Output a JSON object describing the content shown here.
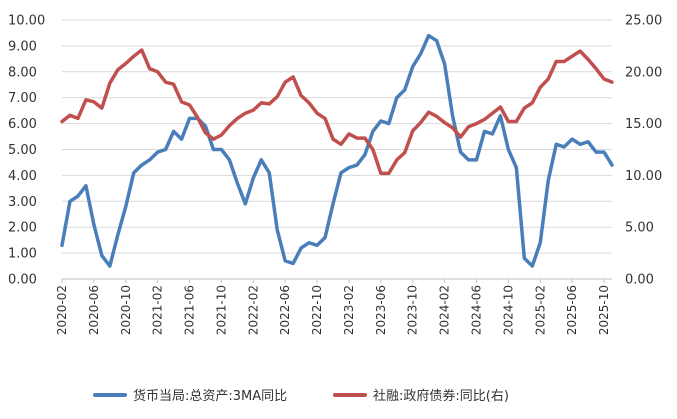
{
  "chart_data": {
    "type": "line",
    "title": "",
    "xlabel": "",
    "ylabel": "",
    "y_left_lim": [
      0,
      10
    ],
    "y_left_ticks": [
      "0.00",
      "1.00",
      "2.00",
      "3.00",
      "4.00",
      "5.00",
      "6.00",
      "7.00",
      "8.00",
      "9.00",
      "10.00"
    ],
    "y_right_lim": [
      0,
      25
    ],
    "y_right_ticks": [
      "0.00",
      "5.00",
      "10.00",
      "15.00",
      "20.00",
      "25.00"
    ],
    "x_tick_labels": [
      "2020-02",
      "2020-06",
      "2020-10",
      "2021-02",
      "2021-06",
      "2021-10",
      "2022-02",
      "2022-06",
      "2022-10",
      "2023-02",
      "2023-06",
      "2023-10",
      "2024-02",
      "2024-06",
      "2024-10",
      "2025-02",
      "2025-06",
      "2025-10"
    ],
    "x_start": "2020-02",
    "x_end": "2025-11",
    "legend_position": "bottom",
    "series": [
      {
        "name": "货币当局:总资产:3MA同比",
        "axis": "left",
        "color": "#4a7ebb",
        "values": [
          1.3,
          3.0,
          3.2,
          3.6,
          2.1,
          0.9,
          0.5,
          1.7,
          2.8,
          4.1,
          4.4,
          4.6,
          4.9,
          5.0,
          5.7,
          5.4,
          6.2,
          6.2,
          5.9,
          5.0,
          5.0,
          4.6,
          3.7,
          2.9,
          3.9,
          4.6,
          4.1,
          1.9,
          0.7,
          0.6,
          1.2,
          1.4,
          1.3,
          1.6,
          2.9,
          4.1,
          4.3,
          4.4,
          4.8,
          5.7,
          6.1,
          6.0,
          7.0,
          7.3,
          8.2,
          8.7,
          9.4,
          9.2,
          8.3,
          6.3,
          4.9,
          4.6,
          4.6,
          5.7,
          5.6,
          6.3,
          5.0,
          4.3,
          0.8,
          0.5,
          1.4,
          3.8,
          5.2,
          5.1,
          5.4,
          5.2,
          5.3,
          4.9,
          4.9,
          4.4
        ]
      },
      {
        "name": "社融:政府债券:同比(右)",
        "axis": "right",
        "color": "#c0504d",
        "values": [
          15.2,
          15.8,
          15.5,
          17.3,
          17.1,
          16.5,
          18.9,
          20.2,
          20.8,
          21.5,
          22.1,
          20.3,
          20.0,
          19.0,
          18.8,
          17.1,
          16.8,
          15.6,
          14.1,
          13.5,
          13.9,
          14.8,
          15.5,
          16.0,
          16.3,
          17.0,
          16.9,
          17.6,
          19.0,
          19.5,
          17.7,
          17.0,
          16.0,
          15.5,
          13.5,
          13.0,
          14.0,
          13.6,
          13.6,
          12.5,
          10.2,
          10.2,
          11.5,
          12.2,
          14.3,
          15.1,
          16.1,
          15.7,
          15.1,
          14.6,
          13.7,
          14.7,
          15.0,
          15.4,
          16.0,
          16.6,
          15.2,
          15.2,
          16.5,
          17.0,
          18.5,
          19.3,
          21.0,
          21.0,
          21.5,
          22.0,
          21.2,
          20.3,
          19.3,
          19.0
        ]
      }
    ]
  }
}
